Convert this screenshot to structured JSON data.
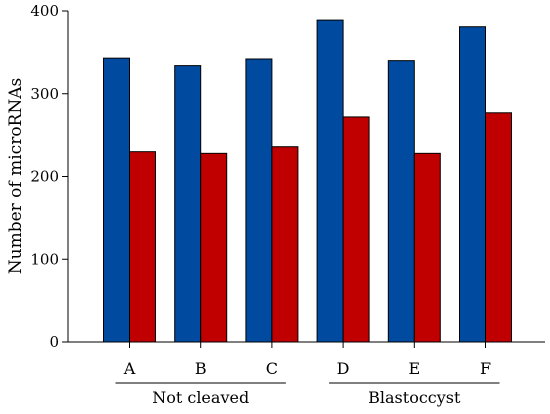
{
  "chart_data": {
    "type": "bar",
    "categories": [
      "A",
      "B",
      "C",
      "D",
      "E",
      "F"
    ],
    "series": [
      {
        "color": "#004a9f",
        "values": [
          343,
          334,
          342,
          389,
          340,
          381
        ]
      },
      {
        "color": "#c00000",
        "values": [
          230,
          228,
          236,
          272,
          228,
          277
        ]
      }
    ],
    "groups": [
      {
        "label": "Not cleaved",
        "categories": [
          "A",
          "B",
          "C"
        ]
      },
      {
        "label": "Blastoccyst",
        "categories": [
          "D",
          "E",
          "F"
        ]
      }
    ],
    "title": "",
    "xlabel": "",
    "ylabel": "Number of microRNAs",
    "ylim": [
      0,
      400
    ],
    "yticks": [
      0,
      100,
      200,
      300,
      400
    ],
    "grid": false,
    "legend": "none"
  }
}
